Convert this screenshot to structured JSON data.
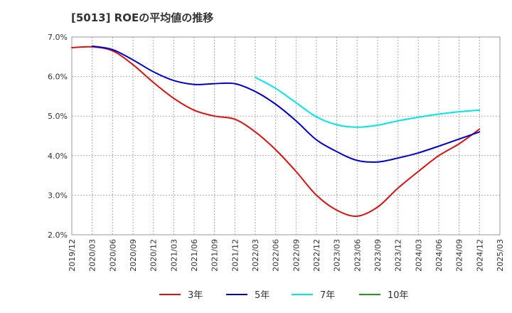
{
  "chart_data": {
    "type": "line",
    "title": "[5013]  ROEの平均値の推移",
    "xlabel": "",
    "ylabel": "",
    "ylim": [
      2.0,
      7.0
    ],
    "y_ticks": [
      "2.0%",
      "3.0%",
      "4.0%",
      "5.0%",
      "6.0%",
      "7.0%"
    ],
    "x_ticks": [
      "2019/12",
      "2020/03",
      "2020/06",
      "2020/09",
      "2020/12",
      "2021/03",
      "2021/06",
      "2021/09",
      "2021/12",
      "2022/03",
      "2022/06",
      "2022/09",
      "2022/12",
      "2023/03",
      "2023/06",
      "2023/09",
      "2023/12",
      "2024/03",
      "2024/06",
      "2024/09",
      "2024/12",
      "2025/03"
    ],
    "grid": true,
    "legend_position": "bottom",
    "series": [
      {
        "name": "3年",
        "color": "#dd1111",
        "x": [
          "2019/12",
          "2020/03",
          "2020/06",
          "2020/09",
          "2020/12",
          "2021/03",
          "2021/06",
          "2021/09",
          "2021/12",
          "2022/03",
          "2022/06",
          "2022/09",
          "2022/12",
          "2023/03",
          "2023/06",
          "2023/09",
          "2023/12",
          "2024/03",
          "2024/06",
          "2024/09",
          "2024/12"
        ],
        "values": [
          6.73,
          6.75,
          6.65,
          6.3,
          5.85,
          5.45,
          5.15,
          5.0,
          4.92,
          4.6,
          4.15,
          3.6,
          3.0,
          2.62,
          2.47,
          2.7,
          3.18,
          3.6,
          4.0,
          4.3,
          4.67
        ]
      },
      {
        "name": "5年",
        "color": "#0000cc",
        "x": [
          "2020/03",
          "2020/06",
          "2020/09",
          "2020/12",
          "2021/03",
          "2021/06",
          "2021/09",
          "2021/12",
          "2022/03",
          "2022/06",
          "2022/09",
          "2022/12",
          "2023/03",
          "2023/06",
          "2023/09",
          "2023/12",
          "2024/03",
          "2024/06",
          "2024/09",
          "2024/12"
        ],
        "values": [
          6.77,
          6.68,
          6.42,
          6.12,
          5.9,
          5.8,
          5.82,
          5.82,
          5.62,
          5.3,
          4.88,
          4.4,
          4.1,
          3.88,
          3.84,
          3.94,
          4.07,
          4.24,
          4.42,
          4.6
        ]
      },
      {
        "name": "7年",
        "color": "#00e5e5",
        "x": [
          "2022/03",
          "2022/06",
          "2022/09",
          "2022/12",
          "2023/03",
          "2023/06",
          "2023/09",
          "2023/12",
          "2024/03",
          "2024/06",
          "2024/09",
          "2024/12"
        ],
        "values": [
          5.98,
          5.7,
          5.34,
          4.98,
          4.78,
          4.72,
          4.77,
          4.88,
          4.97,
          5.05,
          5.11,
          5.15
        ]
      },
      {
        "name": "10年",
        "color": "#229922",
        "x": [],
        "values": []
      }
    ]
  }
}
